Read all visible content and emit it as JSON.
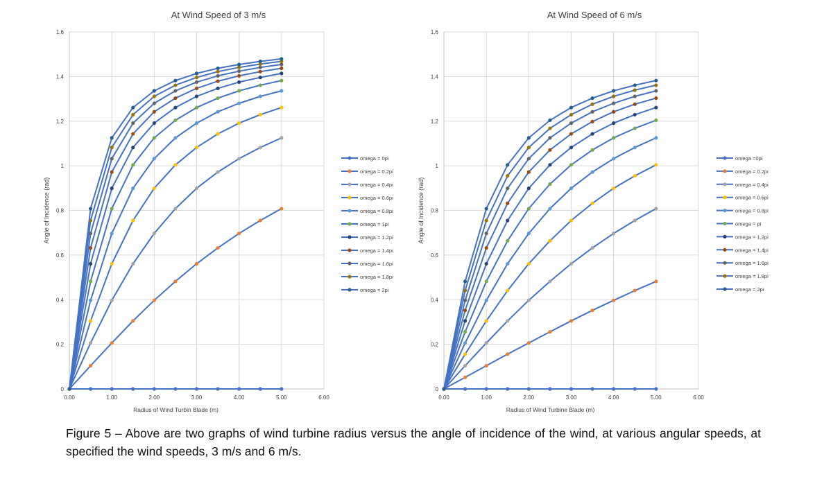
{
  "figure": {
    "caption": "Figure 5 – Above are two graphs of wind turbine radius versus the angle of incidence of the wind, at various angular speeds, at specified the wind speeds, 3 m/s and 6 m/s."
  },
  "colors": {
    "line": "#4472C4",
    "grid": "#D9D9D9",
    "axis": "#BFBFBF",
    "text": "#404040",
    "marker_palette": [
      "#4472C4",
      "#ED7D31",
      "#A5A5A5",
      "#FFC000",
      "#5B9BD5",
      "#70AD47",
      "#264478",
      "#9E480E",
      "#636363",
      "#997300",
      "#255E91"
    ]
  },
  "chart_data": [
    {
      "type": "line",
      "title": "At Wind Speed of 3 m/s",
      "xlabel": "Radius of Wind Turbin Blade (m)",
      "ylabel": "Angle of Incidence (rad)",
      "xlim": [
        0,
        6
      ],
      "ylim": [
        0,
        1.6
      ],
      "xticks": [
        "0.00",
        "1.00",
        "2.00",
        "3.00",
        "4.00",
        "5.00",
        "6.00"
      ],
      "yticks": [
        "0",
        "0.2",
        "0.4",
        "0.6",
        "0.8",
        "1",
        "1.2",
        "1.4",
        "1.6"
      ],
      "grid": true,
      "legend_position": "right",
      "x": [
        0,
        0.5,
        1,
        1.5,
        2,
        2.5,
        3,
        3.5,
        4,
        4.5,
        5
      ],
      "series": [
        {
          "name": "omega = 0pi",
          "values": [
            0,
            0,
            0,
            0,
            0,
            0,
            0,
            0,
            0,
            0,
            0
          ]
        },
        {
          "name": "omega = 0.2pi",
          "values": [
            0,
            0.104,
            0.206,
            0.305,
            0.397,
            0.482,
            0.561,
            0.632,
            0.697,
            0.755,
            0.808
          ]
        },
        {
          "name": "omega = 0.4pi",
          "values": [
            0,
            0.206,
            0.397,
            0.561,
            0.697,
            0.808,
            0.899,
            0.972,
            1.032,
            1.082,
            1.125
          ]
        },
        {
          "name": "omega = 0.6pi",
          "values": [
            0,
            0.305,
            0.561,
            0.755,
            0.899,
            1.004,
            1.082,
            1.143,
            1.191,
            1.229,
            1.261
          ]
        },
        {
          "name": "omega = 0.8pi",
          "values": [
            0,
            0.397,
            0.697,
            0.899,
            1.032,
            1.125,
            1.191,
            1.242,
            1.28,
            1.311,
            1.336
          ]
        },
        {
          "name": "omega = 1pi",
          "values": [
            0,
            0.482,
            0.808,
            1.004,
            1.125,
            1.204,
            1.261,
            1.303,
            1.336,
            1.361,
            1.382
          ]
        },
        {
          "name": "omega = 1.2pi",
          "values": [
            0,
            0.561,
            0.899,
            1.082,
            1.191,
            1.261,
            1.311,
            1.347,
            1.375,
            1.396,
            1.414
          ]
        },
        {
          "name": "omega = 1.4pi",
          "values": [
            0,
            0.632,
            0.972,
            1.143,
            1.242,
            1.303,
            1.347,
            1.379,
            1.403,
            1.422,
            1.437
          ]
        },
        {
          "name": "omega = 1.6pi",
          "values": [
            0,
            0.697,
            1.032,
            1.191,
            1.28,
            1.336,
            1.375,
            1.403,
            1.424,
            1.441,
            1.454
          ]
        },
        {
          "name": "omega = 1.8pi",
          "values": [
            0,
            0.755,
            1.082,
            1.229,
            1.311,
            1.361,
            1.396,
            1.422,
            1.441,
            1.456,
            1.468
          ]
        },
        {
          "name": "omega = 2pi",
          "values": [
            0,
            0.808,
            1.125,
            1.261,
            1.336,
            1.382,
            1.414,
            1.437,
            1.454,
            1.468,
            1.479
          ]
        }
      ]
    },
    {
      "type": "line",
      "title": "At Wind Speed of 6 m/s",
      "xlabel": "Radius of Wind Turbine Blade (m)",
      "ylabel": "Angle of Incidence (rad)",
      "xlim": [
        0,
        6
      ],
      "ylim": [
        0,
        1.6
      ],
      "xticks": [
        "0.00",
        "1.00",
        "2.00",
        "3.00",
        "4.00",
        "5.00",
        "6.00"
      ],
      "yticks": [
        "0",
        "0.2",
        "0.4",
        "0.6",
        "0.8",
        "1",
        "1.2",
        "1.4",
        "1.6"
      ],
      "grid": true,
      "legend_position": "right",
      "x": [
        0,
        0.5,
        1,
        1.5,
        2,
        2.5,
        3,
        3.5,
        4,
        4.5,
        5
      ],
      "series": [
        {
          "name": "omega =0pi",
          "values": [
            0,
            0,
            0,
            0,
            0,
            0,
            0,
            0,
            0,
            0,
            0
          ]
        },
        {
          "name": "omega = 0.2pi",
          "values": [
            0,
            0.052,
            0.104,
            0.156,
            0.206,
            0.256,
            0.305,
            0.352,
            0.397,
            0.441,
            0.482
          ]
        },
        {
          "name": "omega = 0.4pi",
          "values": [
            0,
            0.104,
            0.206,
            0.305,
            0.397,
            0.482,
            0.561,
            0.632,
            0.697,
            0.755,
            0.808
          ]
        },
        {
          "name": "omega = 0.6pi",
          "values": [
            0,
            0.156,
            0.305,
            0.441,
            0.561,
            0.664,
            0.755,
            0.832,
            0.899,
            0.955,
            1.004
          ]
        },
        {
          "name": "omega = 0.8pi",
          "values": [
            0,
            0.206,
            0.397,
            0.561,
            0.697,
            0.808,
            0.899,
            0.972,
            1.032,
            1.082,
            1.125
          ]
        },
        {
          "name": "omega = pi",
          "values": [
            0,
            0.256,
            0.482,
            0.664,
            0.808,
            0.918,
            1.004,
            1.071,
            1.125,
            1.168,
            1.204
          ]
        },
        {
          "name": "omega = 1.2pi",
          "values": [
            0,
            0.305,
            0.561,
            0.755,
            0.899,
            1.004,
            1.082,
            1.143,
            1.191,
            1.229,
            1.261
          ]
        },
        {
          "name": "omega = 1.4pi",
          "values": [
            0,
            0.352,
            0.632,
            0.832,
            0.972,
            1.071,
            1.143,
            1.198,
            1.242,
            1.276,
            1.303
          ]
        },
        {
          "name": "omega = 1.6pi",
          "values": [
            0,
            0.397,
            0.697,
            0.899,
            1.032,
            1.125,
            1.191,
            1.242,
            1.28,
            1.311,
            1.336
          ]
        },
        {
          "name": "omega = 1.8pi",
          "values": [
            0,
            0.441,
            0.755,
            0.955,
            1.082,
            1.168,
            1.229,
            1.276,
            1.311,
            1.339,
            1.361
          ]
        },
        {
          "name": "omega = 2pi",
          "values": [
            0,
            0.482,
            0.808,
            1.004,
            1.125,
            1.204,
            1.261,
            1.303,
            1.336,
            1.361,
            1.382
          ]
        }
      ]
    }
  ]
}
